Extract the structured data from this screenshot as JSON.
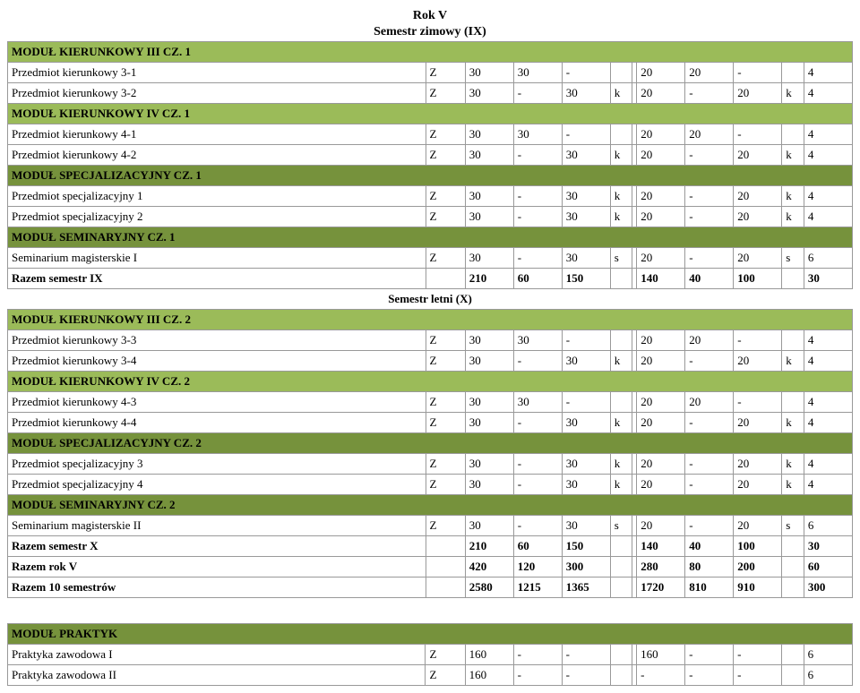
{
  "colors": {
    "green": "#9bbb59",
    "olive": "#76923c",
    "border": "#999999",
    "bg": "#ffffff"
  },
  "headings": {
    "rok": "Rok V",
    "sem_zim": "Semestr zimowy (IX)",
    "sem_let": "Semestr letni (X)"
  },
  "mods": {
    "mk3_1": "MODUŁ KIERUNKOWY III CZ. 1",
    "mk4_1": "MODUŁ KIERUNKOWY IV CZ. 1",
    "msp_1": "MODUŁ SPECJALIZACYJNY CZ. 1",
    "msem_1": "MODUŁ SEMINARYJNY CZ. 1",
    "mk3_2": "MODUŁ KIERUNKOWY III CZ. 2",
    "mk4_2": "MODUŁ KIERUNKOWY IV CZ. 2",
    "msp_2": "MODUŁ SPECJALIZACYJNY CZ. 2",
    "msem_2": "MODUŁ SEMINARYJNY CZ. 2",
    "mprak": "MODUŁ PRAKTYK"
  },
  "rows": {
    "pk31": {
      "n": "Przedmiot kierunkowy 3-1",
      "fe": "Z",
      "a": "30",
      "b": "30",
      "c": "-",
      "d": "",
      "e": "20",
      "f": "20",
      "g": "-",
      "h": "",
      "i": "4"
    },
    "pk32": {
      "n": "Przedmiot kierunkowy 3-2",
      "fe": "Z",
      "a": "30",
      "b": "-",
      "c": "30",
      "d": "k",
      "e": "20",
      "f": "-",
      "g": "20",
      "h": "k",
      "i": "4"
    },
    "pk41": {
      "n": "Przedmiot kierunkowy 4-1",
      "fe": "Z",
      "a": "30",
      "b": "30",
      "c": "-",
      "d": "",
      "e": "20",
      "f": "20",
      "g": "-",
      "h": "",
      "i": "4"
    },
    "pk42": {
      "n": "Przedmiot kierunkowy 4-2",
      "fe": "Z",
      "a": "30",
      "b": "-",
      "c": "30",
      "d": "k",
      "e": "20",
      "f": "-",
      "g": "20",
      "h": "k",
      "i": "4"
    },
    "ps1": {
      "n": "Przedmiot specjalizacyjny 1",
      "fe": "Z",
      "a": "30",
      "b": "-",
      "c": "30",
      "d": "k",
      "e": "20",
      "f": "-",
      "g": "20",
      "h": "k",
      "i": "4"
    },
    "ps2": {
      "n": "Przedmiot specjalizacyjny 2",
      "fe": "Z",
      "a": "30",
      "b": "-",
      "c": "30",
      "d": "k",
      "e": "20",
      "f": "-",
      "g": "20",
      "h": "k",
      "i": "4"
    },
    "sem1": {
      "n": "Seminarium magisterskie I",
      "fe": "Z",
      "a": "30",
      "b": "-",
      "c": "30",
      "d": "s",
      "e": "20",
      "f": "-",
      "g": "20",
      "h": "s",
      "i": "6"
    },
    "rs9": {
      "n": "Razem semestr IX",
      "fe": "",
      "a": "210",
      "b": "60",
      "c": "150",
      "d": "",
      "e": "140",
      "f": "40",
      "g": "100",
      "h": "",
      "i": "30"
    },
    "pk33": {
      "n": "Przedmiot kierunkowy 3-3",
      "fe": "Z",
      "a": "30",
      "b": "30",
      "c": "-",
      "d": "",
      "e": "20",
      "f": "20",
      "g": "-",
      "h": "",
      "i": "4"
    },
    "pk34": {
      "n": "Przedmiot kierunkowy 3-4",
      "fe": "Z",
      "a": "30",
      "b": "-",
      "c": "30",
      "d": "k",
      "e": "20",
      "f": "-",
      "g": "20",
      "h": "k",
      "i": "4"
    },
    "pk43": {
      "n": "Przedmiot kierunkowy 4-3",
      "fe": "Z",
      "a": "30",
      "b": "30",
      "c": "-",
      "d": "",
      "e": "20",
      "f": "20",
      "g": "-",
      "h": "",
      "i": "4"
    },
    "pk44": {
      "n": "Przedmiot kierunkowy 4-4",
      "fe": "Z",
      "a": "30",
      "b": "-",
      "c": "30",
      "d": "k",
      "e": "20",
      "f": "-",
      "g": "20",
      "h": "k",
      "i": "4"
    },
    "ps3": {
      "n": "Przedmiot specjalizacyjny 3",
      "fe": "Z",
      "a": "30",
      "b": "-",
      "c": "30",
      "d": "k",
      "e": "20",
      "f": "-",
      "g": "20",
      "h": "k",
      "i": "4"
    },
    "ps4": {
      "n": "Przedmiot specjalizacyjny 4",
      "fe": "Z",
      "a": "30",
      "b": "-",
      "c": "30",
      "d": "k",
      "e": "20",
      "f": "-",
      "g": "20",
      "h": "k",
      "i": "4"
    },
    "sem2": {
      "n": "Seminarium magisterskie II",
      "fe": "Z",
      "a": "30",
      "b": "-",
      "c": "30",
      "d": "s",
      "e": "20",
      "f": "-",
      "g": "20",
      "h": "s",
      "i": "6"
    },
    "rs10": {
      "n": "Razem semestr X",
      "fe": "",
      "a": "210",
      "b": "60",
      "c": "150",
      "d": "",
      "e": "140",
      "f": "40",
      "g": "100",
      "h": "",
      "i": "30"
    },
    "rrV": {
      "n": "Razem rok V",
      "fe": "",
      "a": "420",
      "b": "120",
      "c": "300",
      "d": "",
      "e": "280",
      "f": "80",
      "g": "200",
      "h": "",
      "i": "60"
    },
    "r10s": {
      "n": "Razem 10 semestrów",
      "fe": "",
      "a": "2580",
      "b": "1215",
      "c": "1365",
      "d": "",
      "e": "1720",
      "f": "810",
      "g": "910",
      "h": "",
      "i": "300"
    },
    "pz1": {
      "n": "Praktyka zawodowa I",
      "fe": "Z",
      "a": "160",
      "b": "-",
      "c": "-",
      "d": "",
      "e": "160",
      "f": "-",
      "g": "-",
      "h": "",
      "i": "6"
    },
    "pz2": {
      "n": "Praktyka zawodowa II",
      "fe": "Z",
      "a": "160",
      "b": "-",
      "c": "-",
      "d": "",
      "e": "-",
      "f": "-",
      "g": "-",
      "h": "",
      "i": "6"
    }
  }
}
